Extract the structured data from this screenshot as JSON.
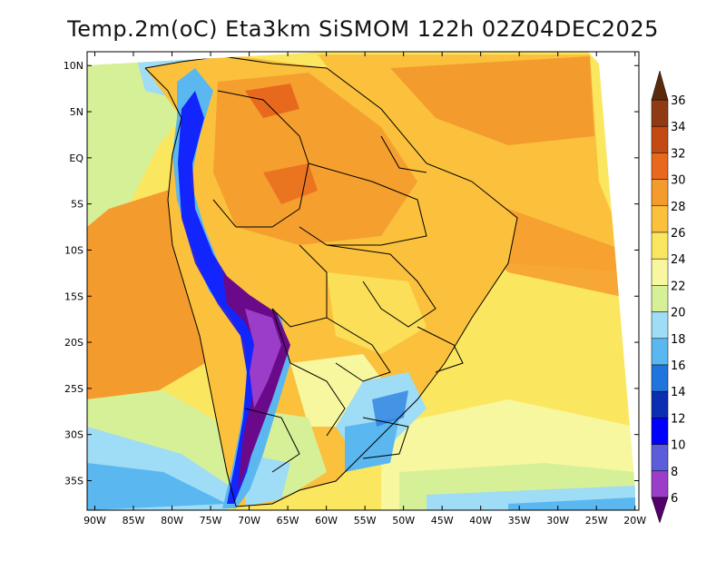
{
  "title": "Temp.2m(oC) Eta3km SiSMOM 122h 02Z04DEC2025",
  "map": {
    "lat_labels": [
      "10N",
      "5N",
      "EQ",
      "5S",
      "10S",
      "15S",
      "20S",
      "25S",
      "30S",
      "35S"
    ],
    "lon_labels": [
      "90W",
      "85W",
      "80W",
      "75W",
      "70W",
      "65W",
      "60W",
      "55W",
      "50W",
      "45W",
      "40W",
      "35W",
      "30W",
      "25W",
      "20W"
    ],
    "lat_values": [
      10,
      5,
      0,
      -5,
      -10,
      -15,
      -20,
      -25,
      -30,
      -35
    ],
    "lon_values": [
      -90,
      -85,
      -80,
      -75,
      -70,
      -65,
      -60,
      -55,
      -50,
      -45,
      -40,
      -35,
      -30,
      -25,
      -20
    ],
    "lat_range": [
      -38.2,
      11.5
    ],
    "lon_range": [
      -91,
      -19.5
    ]
  },
  "colorbar": {
    "labels": [
      "36",
      "34",
      "32",
      "30",
      "28",
      "26",
      "24",
      "22",
      "20",
      "18",
      "16",
      "14",
      "12",
      "10",
      "8",
      "6"
    ],
    "colors": [
      "#6b3410",
      "#8f3a12",
      "#c34a12",
      "#e8691d",
      "#f49b2e",
      "#fbc13c",
      "#fbe660",
      "#f7f7a0",
      "#d6f098",
      "#9fdcf5",
      "#5ab7ef",
      "#1f74dd",
      "#0a2fb3",
      "#0000ff",
      "#5d5ddc",
      "#9b3dc8",
      "#6a0a8a"
    ],
    "top_color": "#5a2a0a",
    "bottom_color": "#53006b"
  }
}
